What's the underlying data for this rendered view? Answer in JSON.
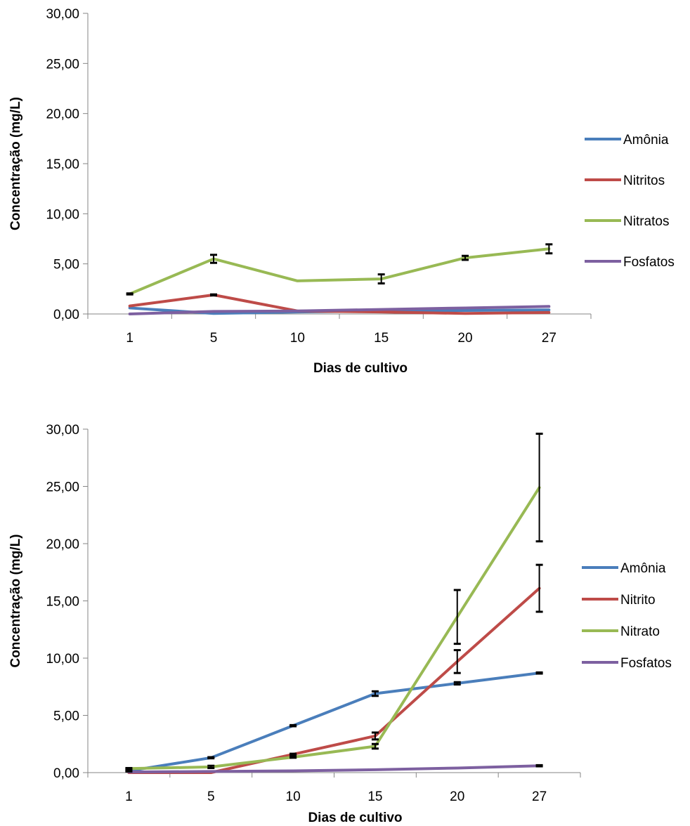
{
  "chart_data": [
    {
      "type": "line",
      "title": "",
      "xlabel": "Dias de cultivo",
      "ylabel": "Concentração (mg/L)",
      "categories": [
        "1",
        "5",
        "10",
        "15",
        "20",
        "27"
      ],
      "ylim": [
        0,
        30
      ],
      "yticks": [
        "0,00",
        "5,00",
        "10,00",
        "15,00",
        "20,00",
        "25,00",
        "30,00"
      ],
      "grid": false,
      "legend_position": "right",
      "series": [
        {
          "name": "Amônia",
          "color": "#4a7ebb",
          "values": [
            0.6,
            0.05,
            0.2,
            0.3,
            0.35,
            0.4
          ],
          "errors": [
            0,
            0,
            0,
            0,
            0,
            0
          ]
        },
        {
          "name": "Nitritos",
          "color": "#be4b48",
          "values": [
            0.8,
            1.9,
            0.3,
            0.2,
            0.05,
            0.15
          ],
          "errors": [
            0,
            0.05,
            0,
            0,
            0,
            0
          ]
        },
        {
          "name": "Nitratos",
          "color": "#98b954",
          "values": [
            2.0,
            5.5,
            3.3,
            3.5,
            5.6,
            6.5
          ],
          "errors": [
            0.05,
            0.4,
            0,
            0.45,
            0.2,
            0.45
          ]
        },
        {
          "name": "Fosfatos",
          "color": "#7d60a0",
          "values": [
            0.0,
            0.25,
            0.3,
            0.45,
            0.6,
            0.75
          ],
          "errors": [
            0,
            0,
            0,
            0,
            0,
            0
          ]
        }
      ]
    },
    {
      "type": "line",
      "title": "",
      "xlabel": "Dias de cultivo",
      "ylabel": "Concentração (mg/L)",
      "categories": [
        "1",
        "5",
        "10",
        "15",
        "20",
        "27"
      ],
      "ylim": [
        0,
        30
      ],
      "yticks": [
        "0,00",
        "5,00",
        "10,00",
        "15,00",
        "20,00",
        "25,00",
        "30,00"
      ],
      "grid": false,
      "legend_position": "right",
      "series": [
        {
          "name": "Amônia",
          "color": "#4a7ebb",
          "values": [
            0.15,
            1.3,
            4.1,
            6.9,
            7.8,
            8.7
          ],
          "errors": [
            0.05,
            0.05,
            0.05,
            0.2,
            0.1,
            0.05
          ]
        },
        {
          "name": "Nitrito",
          "color": "#be4b48",
          "values": [
            0.0,
            0.0,
            1.6,
            3.2,
            9.7,
            16.1
          ],
          "errors": [
            0,
            0,
            0.05,
            0.3,
            1.0,
            2.05
          ]
        },
        {
          "name": "Nitrato",
          "color": "#98b954",
          "values": [
            0.35,
            0.5,
            1.35,
            2.3,
            13.6,
            24.9
          ],
          "errors": [
            0.05,
            0.1,
            0.05,
            0.2,
            2.35,
            4.7
          ]
        },
        {
          "name": "Fosfatos",
          "color": "#7d60a0",
          "values": [
            0.05,
            0.1,
            0.15,
            0.25,
            0.4,
            0.6
          ],
          "errors": [
            0,
            0,
            0,
            0,
            0,
            0.05
          ]
        }
      ]
    }
  ]
}
